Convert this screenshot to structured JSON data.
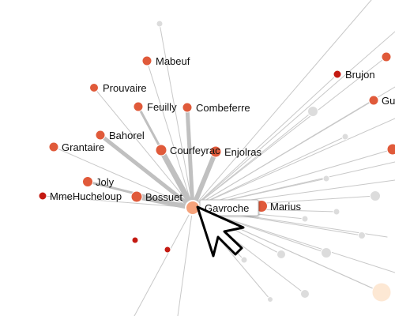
{
  "graph": {
    "focus": "Gavroche",
    "colors": {
      "highlight": "#e05a3a",
      "focus": "#f6a27a",
      "strong_node": "#c41a12",
      "dim_node": "#dcdcdc",
      "pale_node": "#fde8d4",
      "edge": "#c8c8c8",
      "edge_strong": "#c0c0c0",
      "label_box": "#ffffff"
    },
    "labeled_nodes": [
      {
        "id": "Mabeuf",
        "label": "Mabeuf"
      },
      {
        "id": "Prouvaire",
        "label": "Prouvaire"
      },
      {
        "id": "Feuilly",
        "label": "Feuilly"
      },
      {
        "id": "Combeferre",
        "label": "Combeferre"
      },
      {
        "id": "Bahorel",
        "label": "Bahorel"
      },
      {
        "id": "Courfeyrac",
        "label": "Courfeyrac"
      },
      {
        "id": "Enjolras",
        "label": "Enjolras"
      },
      {
        "id": "Grantaire",
        "label": "Grantaire"
      },
      {
        "id": "Joly",
        "label": "Joly"
      },
      {
        "id": "MmeHucheloup",
        "label": "MmeHucheloup"
      },
      {
        "id": "Bossuet",
        "label": "Bossuet"
      },
      {
        "id": "Marius",
        "label": "Marius"
      },
      {
        "id": "Brujon",
        "label": "Brujon"
      },
      {
        "id": "Gueulemer",
        "label": "Gu"
      },
      {
        "id": "Gavroche",
        "label": "Gavroche"
      }
    ],
    "cursor_icon": "arrow-pointer-icon"
  }
}
